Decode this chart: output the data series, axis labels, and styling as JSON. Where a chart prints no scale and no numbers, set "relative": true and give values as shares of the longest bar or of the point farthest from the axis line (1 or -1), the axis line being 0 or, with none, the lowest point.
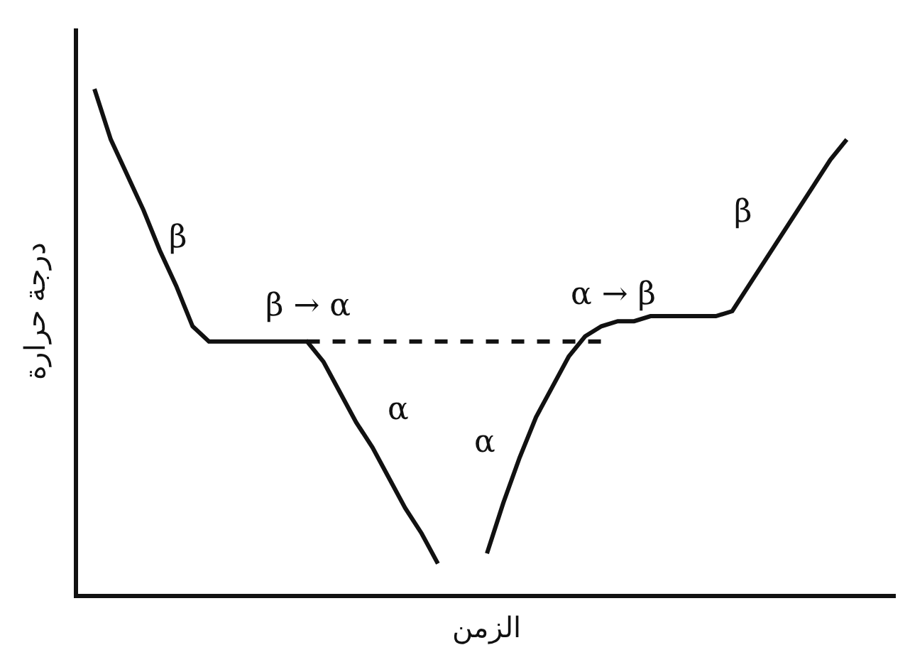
{
  "chart_data": {
    "type": "line",
    "relative": true,
    "xlabel": "الزمن",
    "ylabel": "درجة حرارة",
    "tick_labels": false,
    "marker": "none",
    "categories": [
      null,
      null,
      null,
      null,
      null,
      null,
      null,
      null,
      null,
      null,
      null,
      null,
      null,
      null,
      null,
      null,
      null,
      null,
      null,
      null,
      null,
      null,
      null,
      null,
      null,
      null,
      null,
      null,
      null,
      null,
      null,
      null,
      null,
      null,
      null,
      null,
      null,
      null,
      null,
      null,
      null,
      null,
      null,
      null,
      null,
      null,
      null,
      null
    ],
    "series": [
      {
        "color": "#111111",
        "line_style": "solid",
        "values": [
          1,
          0.9,
          0.83,
          0.76,
          0.68,
          0.61,
          0.53,
          0.5,
          0.5,
          0.5,
          0.5,
          0.5,
          0.5,
          0.5,
          0.46,
          0.4,
          0.34,
          0.29,
          0.23,
          0.17,
          0.12,
          0.06,
          null,
          null,
          null,
          null,
          null,
          null,
          null,
          null,
          null,
          null,
          null,
          null,
          null,
          null,
          null,
          null,
          null,
          null,
          null,
          null,
          null,
          null,
          null,
          null,
          null,
          null
        ]
      },
      {
        "color": "#111111",
        "line_style": "dashed",
        "values": [
          null,
          null,
          null,
          null,
          null,
          null,
          null,
          null,
          null,
          null,
          null,
          null,
          null,
          0.5,
          0.5,
          0.5,
          0.5,
          0.5,
          0.5,
          0.5,
          0.5,
          0.5,
          0.5,
          0.5,
          0.5,
          0.5,
          0.5,
          0.5,
          0.5,
          0.5,
          0.5,
          0.5,
          null,
          null,
          null,
          null,
          null,
          null,
          null,
          null,
          null,
          null,
          null,
          null,
          null,
          null,
          null,
          null
        ]
      },
      {
        "color": "#111111",
        "line_style": "solid",
        "values": [
          null,
          null,
          null,
          null,
          null,
          null,
          null,
          null,
          null,
          null,
          null,
          null,
          null,
          null,
          null,
          null,
          null,
          null,
          null,
          null,
          null,
          null,
          null,
          null,
          0.08,
          0.18,
          0.27,
          0.35,
          0.41,
          0.47,
          0.51,
          0.53,
          0.54,
          0.54,
          0.55,
          0.55,
          0.55,
          0.55,
          0.55,
          0.56,
          0.61,
          0.66,
          0.71,
          0.76,
          0.81,
          0.86,
          0.9,
          null
        ]
      }
    ],
    "annotations": [
      "β",
      "β → α",
      "α",
      "α",
      "α → β",
      "β"
    ]
  }
}
